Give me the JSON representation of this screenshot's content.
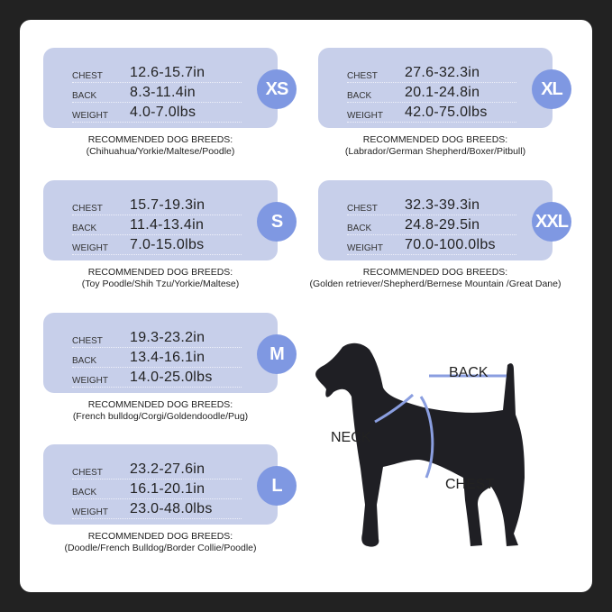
{
  "labels": {
    "chest": "CHEST",
    "back": "BACK",
    "weight": "WEIGHT",
    "rec": "RECOMMENDED DOG BREEDS:"
  },
  "colors": {
    "box": "#c7cfea",
    "badge": "#7f98e2",
    "background": "#222222"
  },
  "sizes": [
    {
      "size": "XS",
      "chest": "12.6-15.7in",
      "back": "8.3-11.4in",
      "weight": "4.0-7.0lbs",
      "breeds": "(Chihuahua/Yorkie/Maltese/Poodle)"
    },
    {
      "size": "S",
      "chest": "15.7-19.3in",
      "back": "11.4-13.4in",
      "weight": "7.0-15.0lbs",
      "breeds": "(Toy Poodle/Shih Tzu/Yorkie/Maltese)"
    },
    {
      "size": "M",
      "chest": "19.3-23.2in",
      "back": "13.4-16.1in",
      "weight": "14.0-25.0lbs",
      "breeds": "(French bulldog/Corgi/Goldendoodle/Pug)"
    },
    {
      "size": "L",
      "chest": "23.2-27.6in",
      "back": "16.1-20.1in",
      "weight": "23.0-48.0lbs",
      "breeds": "(Doodle/French Bulldog/Border Collie/Poodle)"
    },
    {
      "size": "XL",
      "chest": "27.6-32.3in",
      "back": "20.1-24.8in",
      "weight": "42.0-75.0lbs",
      "breeds": "(Labrador/German Shepherd/Boxer/Pitbull)"
    },
    {
      "size": "XXL",
      "chest": "32.3-39.3in",
      "back": "24.8-29.5in",
      "weight": "70.0-100.0lbs",
      "breeds": "(Golden retriever/Shepherd/Bernese Mountain /Great Dane)"
    }
  ],
  "diagram": {
    "back": "BACK",
    "neck": "NECK",
    "chest": "CHEST"
  }
}
